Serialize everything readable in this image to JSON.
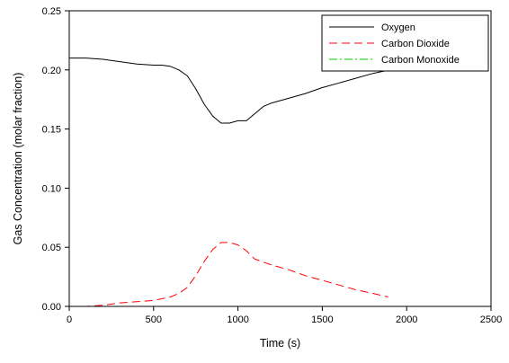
{
  "chart_data": {
    "type": "line",
    "title": "",
    "xlabel": "Time (s)",
    "ylabel": "Gas Concentration (molar fraction)",
    "xlim": [
      0,
      2500
    ],
    "ylim": [
      0,
      0.25
    ],
    "xticks": [
      0,
      500,
      1000,
      1500,
      2000,
      2500
    ],
    "yticks": [
      0.0,
      0.05,
      0.1,
      0.15,
      0.2,
      0.25
    ],
    "xtick_labels": [
      "0",
      "500",
      "1000",
      "1500",
      "2000",
      "2500"
    ],
    "ytick_labels": [
      "0.00",
      "0.05",
      "0.10",
      "0.15",
      "0.20",
      "0.25"
    ],
    "grid": false,
    "legend_position": "top-right",
    "series": [
      {
        "name": "Oxygen",
        "color": "#000000",
        "dash": "solid",
        "x": [
          0,
          100,
          200,
          300,
          400,
          500,
          550,
          600,
          650,
          700,
          750,
          800,
          850,
          900,
          950,
          1000,
          1050,
          1100,
          1150,
          1200,
          1300,
          1400,
          1500,
          1600,
          1700,
          1800,
          1900
        ],
        "y": [
          0.21,
          0.21,
          0.209,
          0.207,
          0.205,
          0.204,
          0.204,
          0.203,
          0.2,
          0.195,
          0.184,
          0.171,
          0.161,
          0.155,
          0.155,
          0.157,
          0.157,
          0.163,
          0.169,
          0.172,
          0.176,
          0.18,
          0.185,
          0.189,
          0.193,
          0.197,
          0.2
        ]
      },
      {
        "name": "Carbon Dioxide",
        "color": "#ff0000",
        "dash": "dashed",
        "x": [
          0,
          100,
          200,
          300,
          400,
          500,
          600,
          650,
          700,
          750,
          800,
          850,
          900,
          950,
          1000,
          1050,
          1100,
          1200,
          1300,
          1400,
          1500,
          1600,
          1700,
          1800,
          1890
        ],
        "y": [
          0.0,
          0.0,
          0.001,
          0.003,
          0.004,
          0.005,
          0.008,
          0.011,
          0.016,
          0.026,
          0.038,
          0.048,
          0.054,
          0.054,
          0.052,
          0.047,
          0.04,
          0.035,
          0.031,
          0.026,
          0.022,
          0.018,
          0.014,
          0.011,
          0.008
        ]
      },
      {
        "name": "Carbon Monoxide",
        "color": "#00cc00",
        "dash": "dash-dot",
        "x": [
          0,
          500,
          1000,
          1500,
          1890
        ],
        "y": [
          0.0,
          0.0,
          0.0,
          0.0,
          0.0
        ]
      }
    ]
  }
}
